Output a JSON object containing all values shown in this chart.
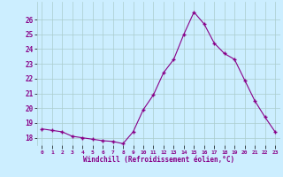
{
  "x": [
    0,
    1,
    2,
    3,
    4,
    5,
    6,
    7,
    8,
    9,
    10,
    11,
    12,
    13,
    14,
    15,
    16,
    17,
    18,
    19,
    20,
    21,
    22,
    23
  ],
  "y": [
    18.6,
    18.5,
    18.4,
    18.1,
    18.0,
    17.9,
    17.8,
    17.75,
    17.6,
    18.4,
    19.9,
    20.9,
    22.4,
    23.3,
    25.0,
    26.5,
    25.7,
    24.4,
    23.7,
    23.3,
    21.9,
    20.5,
    19.4,
    18.4
  ],
  "line_color": "#880088",
  "marker": "+",
  "marker_size": 3,
  "bg_color": "#cceeff",
  "grid_color": "#aacccc",
  "xlabel": "Windchill (Refroidissement éolien,°C)",
  "xlabel_color": "#880088",
  "tick_label_color": "#880088",
  "ylim": [
    17.5,
    27.2
  ],
  "xlim": [
    -0.5,
    23.5
  ],
  "yticks": [
    18,
    19,
    20,
    21,
    22,
    23,
    24,
    25,
    26
  ],
  "xticks": [
    0,
    1,
    2,
    3,
    4,
    5,
    6,
    7,
    8,
    9,
    10,
    11,
    12,
    13,
    14,
    15,
    16,
    17,
    18,
    19,
    20,
    21,
    22,
    23
  ]
}
